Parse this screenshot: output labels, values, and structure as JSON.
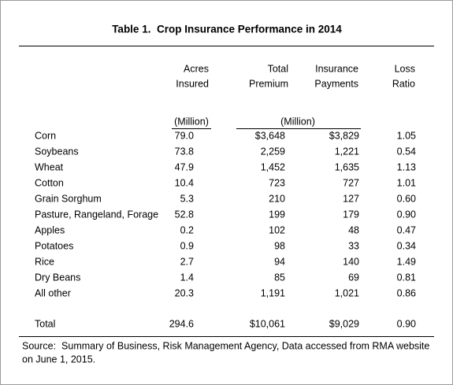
{
  "title": "Table 1.  Crop Insurance Performance in 2014",
  "table": {
    "columns": [
      [
        "Acres",
        "Insured"
      ],
      [
        "Total",
        "Premium"
      ],
      [
        "Insurance",
        "Payments"
      ],
      [
        "Loss",
        "Ratio"
      ]
    ],
    "units": [
      "(Million)",
      "(Million)"
    ],
    "rows": [
      [
        "Corn",
        "79.0",
        "$3,648",
        "$3,829",
        "1.05"
      ],
      [
        "Soybeans",
        "73.8",
        "2,259",
        "1,221",
        "0.54"
      ],
      [
        "Wheat",
        "47.9",
        "1,452",
        "1,635",
        "1.13"
      ],
      [
        "Cotton",
        "10.4",
        "723",
        "727",
        "1.01"
      ],
      [
        "Grain Sorghum",
        "5.3",
        "210",
        "127",
        "0.60"
      ],
      [
        "Pasture, Rangeland, Forage",
        "52.8",
        "199",
        "179",
        "0.90"
      ],
      [
        "Apples",
        "0.2",
        "102",
        "48",
        "0.47"
      ],
      [
        "Potatoes",
        "0.9",
        "98",
        "33",
        "0.34"
      ],
      [
        "Rice",
        "2.7",
        "94",
        "140",
        "1.49"
      ],
      [
        "Dry Beans",
        "1.4",
        "85",
        "69",
        "0.81"
      ],
      [
        "All other",
        "20.3",
        "1,191",
        "1,021",
        "0.86"
      ]
    ],
    "total": [
      "Total",
      "294.6",
      "$10,061",
      "$9,029",
      "0.90"
    ]
  },
  "source": [
    "Source:  Summary of Business, Risk Management Agency, Data accessed from RMA website",
    "on June 1, 2015."
  ]
}
